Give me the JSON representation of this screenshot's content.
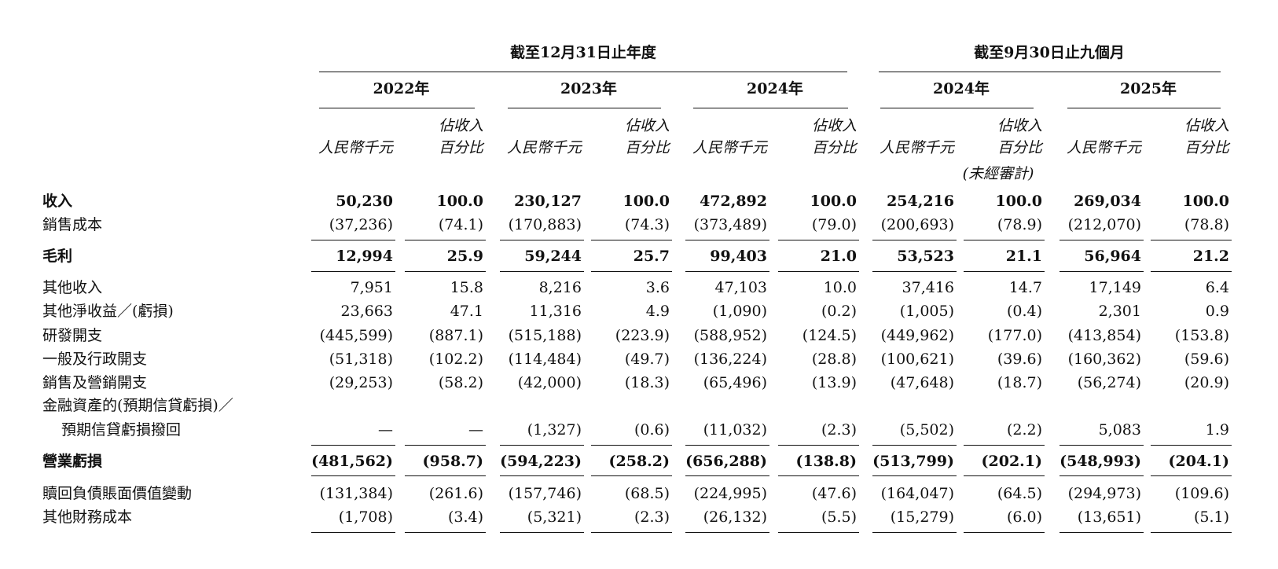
{
  "header": {
    "groups": [
      "截至12月31日止年度",
      "截至9月30日止九個月"
    ],
    "years": [
      "2022年",
      "2023年",
      "2024年",
      "2024年",
      "2025年"
    ],
    "amount_label": "人民幣千元",
    "pct_label_line1": "佔收入",
    "pct_label_line2": "百分比",
    "unaudited": "(未經審計)"
  },
  "rows": [
    {
      "label": [
        "收入"
      ],
      "bold": true,
      "rule_below": false,
      "values": [
        "50,230",
        "100.0",
        "230,127",
        "100.0",
        "472,892",
        "100.0",
        "254,216",
        "100.0",
        "269,034",
        "100.0"
      ]
    },
    {
      "label": [
        "銷售成本"
      ],
      "bold": false,
      "rule_below": true,
      "values": [
        "(37,236)",
        "(74.1)",
        "(170,883)",
        "(74.3)",
        "(373,489)",
        "(79.0)",
        "(200,693)",
        "(78.9)",
        "(212,070)",
        "(78.8)"
      ]
    },
    {
      "label": [
        "毛利"
      ],
      "bold": true,
      "rule_below": true,
      "values": [
        "12,994",
        "25.9",
        "59,244",
        "25.7",
        "99,403",
        "21.0",
        "53,523",
        "21.1",
        "56,964",
        "21.2"
      ]
    },
    {
      "label": [
        "其他收入"
      ],
      "bold": false,
      "rule_below": false,
      "values": [
        "7,951",
        "15.8",
        "8,216",
        "3.6",
        "47,103",
        "10.0",
        "37,416",
        "14.7",
        "17,149",
        "6.4"
      ]
    },
    {
      "label": [
        "其他淨收益／(虧損)"
      ],
      "bold": false,
      "rule_below": false,
      "values": [
        "23,663",
        "47.1",
        "11,316",
        "4.9",
        "(1,090)",
        "(0.2)",
        "(1,005)",
        "(0.4)",
        "2,301",
        "0.9"
      ]
    },
    {
      "label": [
        "研發開支"
      ],
      "bold": false,
      "rule_below": false,
      "values": [
        "(445,599)",
        "(887.1)",
        "(515,188)",
        "(223.9)",
        "(588,952)",
        "(124.5)",
        "(449,962)",
        "(177.0)",
        "(413,854)",
        "(153.8)"
      ]
    },
    {
      "label": [
        "一般及行政開支"
      ],
      "bold": false,
      "rule_below": false,
      "values": [
        "(51,318)",
        "(102.2)",
        "(114,484)",
        "(49.7)",
        "(136,224)",
        "(28.8)",
        "(100,621)",
        "(39.6)",
        "(160,362)",
        "(59.6)"
      ]
    },
    {
      "label": [
        "銷售及營銷開支"
      ],
      "bold": false,
      "rule_below": false,
      "values": [
        "(29,253)",
        "(58.2)",
        "(42,000)",
        "(18.3)",
        "(65,496)",
        "(13.9)",
        "(47,648)",
        "(18.7)",
        "(56,274)",
        "(20.9)"
      ]
    },
    {
      "label": [
        "金融資產的(預期信貸虧損)／",
        "預期信貸虧損撥回"
      ],
      "bold": false,
      "rule_below": true,
      "values": [
        "—",
        "—",
        "(1,327)",
        "(0.6)",
        "(11,032)",
        "(2.3)",
        "(5,502)",
        "(2.2)",
        "5,083",
        "1.9"
      ]
    },
    {
      "label": [
        "營業虧損"
      ],
      "bold": true,
      "rule_below": true,
      "values": [
        "(481,562)",
        "(958.7)",
        "(594,223)",
        "(258.2)",
        "(656,288)",
        "(138.8)",
        "(513,799)",
        "(202.1)",
        "(548,993)",
        "(204.1)"
      ]
    },
    {
      "label": [
        "贖回負債賬面價值變動"
      ],
      "bold": false,
      "rule_below": false,
      "values": [
        "(131,384)",
        "(261.6)",
        "(157,746)",
        "(68.5)",
        "(224,995)",
        "(47.6)",
        "(164,047)",
        "(64.5)",
        "(294,973)",
        "(109.6)"
      ]
    },
    {
      "label": [
        "其他財務成本"
      ],
      "bold": false,
      "rule_below": true,
      "values": [
        "(1,708)",
        "(3.4)",
        "(5,321)",
        "(2.3)",
        "(26,132)",
        "(5.5)",
        "(15,279)",
        "(6.0)",
        "(13,651)",
        "(5.1)"
      ]
    }
  ]
}
